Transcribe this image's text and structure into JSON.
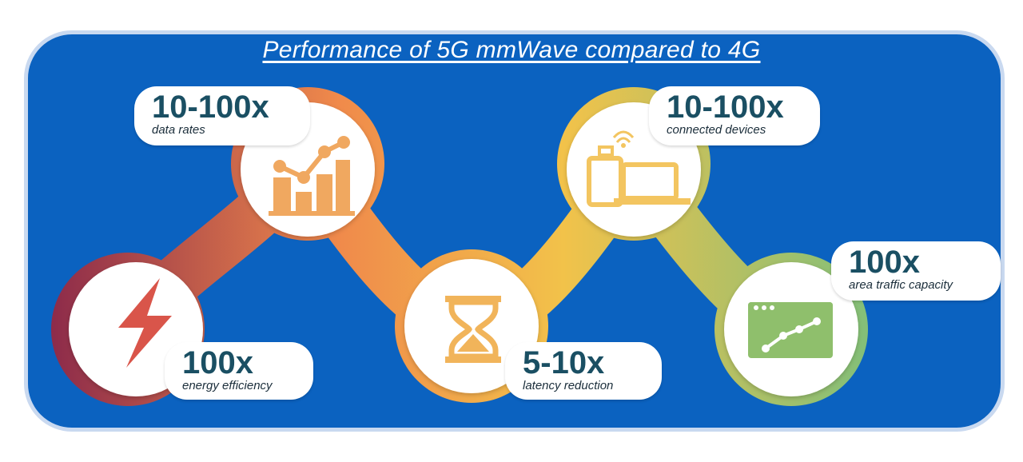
{
  "title": "Performance of 5G mmWave compared to 4G",
  "colors": {
    "background": "#0b62c0",
    "value_text": "#1a4f63",
    "gradient_start": "#8c2a4a",
    "gradient_mid": "#f08a4b",
    "gradient_yellow": "#f2c24a",
    "gradient_end": "#7fbf7a",
    "icon_energy": "#d9554a",
    "icon_orange": "#f0a860",
    "icon_latency": "#f1b45a",
    "icon_devices": "#f3c560",
    "icon_green": "#8fbf6c"
  },
  "metrics": [
    {
      "id": "data-rates",
      "value": "10-100x",
      "label": "data rates",
      "icon": "bar-chart-trend-icon"
    },
    {
      "id": "energy-efficiency",
      "value": "100x",
      "label": "energy efficiency",
      "icon": "lightning-bolt-icon"
    },
    {
      "id": "latency-reduction",
      "value": "5-10x",
      "label": "latency reduction",
      "icon": "hourglass-icon"
    },
    {
      "id": "connected-devices",
      "value": "10-100x",
      "label": "connected devices",
      "icon": "devices-icon"
    },
    {
      "id": "area-traffic-capacity",
      "value": "100x",
      "label": "area traffic capacity",
      "icon": "browser-chart-icon"
    }
  ]
}
